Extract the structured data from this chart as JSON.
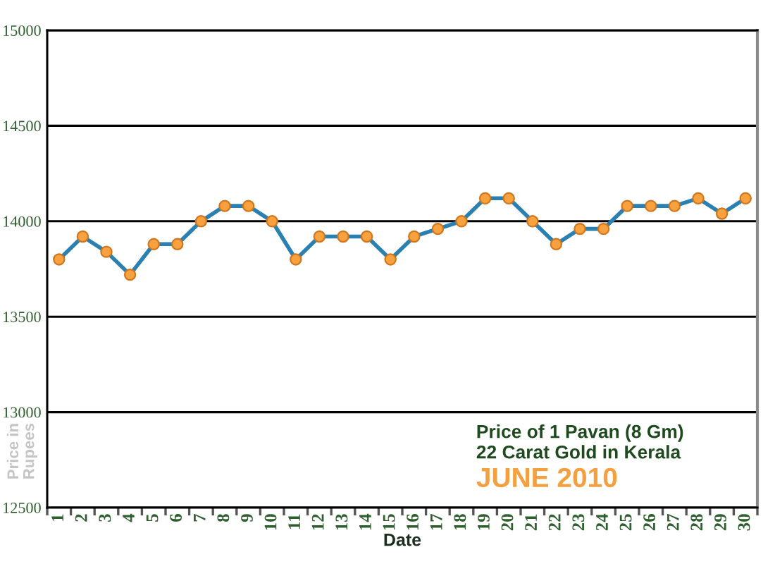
{
  "chart_data": {
    "type": "line",
    "categories": [
      "1",
      "2",
      "3",
      "4",
      "5",
      "6",
      "7",
      "8",
      "9",
      "10",
      "11",
      "12",
      "13",
      "14",
      "15",
      "16",
      "17",
      "18",
      "19",
      "20",
      "21",
      "22",
      "23",
      "24",
      "25",
      "26",
      "27",
      "28",
      "29",
      "30"
    ],
    "series": [
      {
        "color": "#2a80b0",
        "colors": [
          "#f7a23f",
          "#f7a23f",
          "#f7a23f",
          "#f7a23f",
          "#f7a23f",
          "#f7a23f",
          "#f7a23f",
          "#f7a23f",
          "#f7a23f",
          "#f7a23f",
          "#f7a23f",
          "#f7a23f",
          "#f7a23f",
          "#f7a23f",
          "#f7a23f",
          "#f7a23f",
          "#f7a23f",
          "#f7a23f",
          "#f7a23f",
          "#f7a23f",
          "#f7a23f",
          "#f7a23f",
          "#f7a23f",
          "#f7a23f",
          "#f7a23f",
          "#f7a23f",
          "#f7a23f",
          "#f7a23f",
          "#f7a23f",
          "#f7a23f"
        ],
        "values": [
          13800,
          13920,
          13840,
          13720,
          13880,
          13880,
          14000,
          14080,
          14080,
          14000,
          13800,
          13920,
          13920,
          13920,
          13800,
          13920,
          13960,
          14000,
          14120,
          14120,
          14000,
          13880,
          13960,
          13960,
          14080,
          14080,
          14080,
          14120,
          14040,
          14120
        ]
      }
    ],
    "ylim": [
      12500,
      15000
    ],
    "yticks": [
      12500,
      13000,
      13500,
      14000,
      14500,
      15000
    ],
    "xlabel": "Date",
    "ylabel": "Price in\nRupees",
    "annotations": [
      "Price of 1 Pavan (8 Gm)",
      "22 Carat Gold in Kerala",
      "JUNE 2010"
    ],
    "grid": "y",
    "marker": "circle",
    "line_style": "solid"
  }
}
